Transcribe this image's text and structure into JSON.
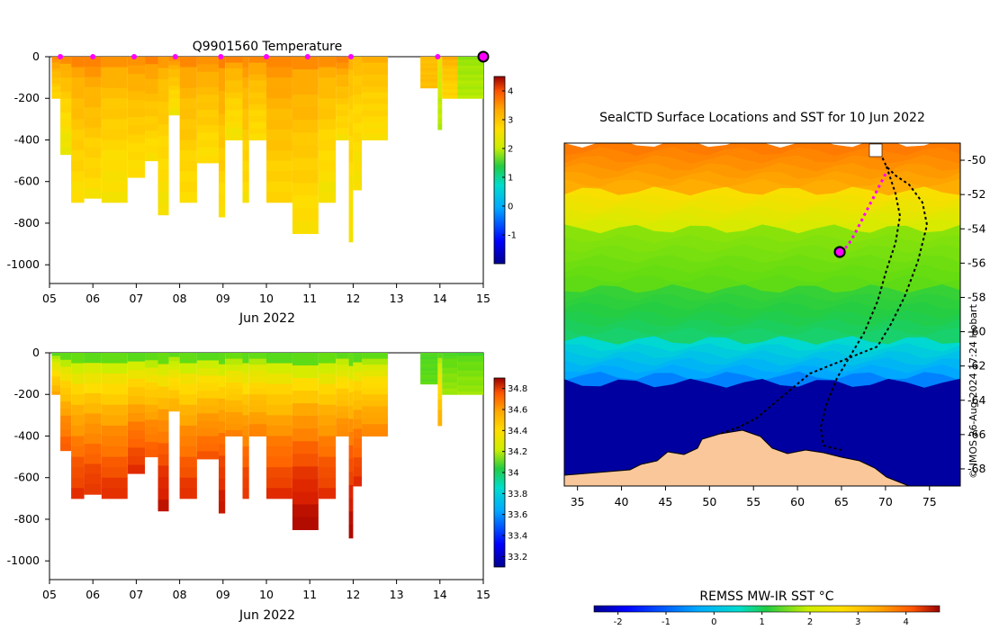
{
  "colors": {
    "jet": [
      "#00008f",
      "#0000ff",
      "#00aaff",
      "#00ddcc",
      "#22cc44",
      "#66dd11",
      "#ccee00",
      "#ffdd00",
      "#ffaa00",
      "#ff6600",
      "#dd2200",
      "#9a0000"
    ],
    "land": "#fac79a",
    "float_track": "#ff00ff"
  },
  "chart_data": [
    {
      "type": "heatmap",
      "title": "Q9901560  Temperature",
      "xlabel": "Jun 2022",
      "x_ticks": [
        "05",
        "06",
        "07",
        "08",
        "09",
        "10",
        "11",
        "12",
        "13",
        "14",
        "15"
      ],
      "y_ticks": [
        "0",
        "-200",
        "-400",
        "-600",
        "-800",
        "-1000"
      ],
      "xlim": [
        5,
        15
      ],
      "ylim": [
        -1090,
        0
      ],
      "colorbar_ticks": [
        "4",
        "3",
        "2",
        "1",
        "0",
        "-1"
      ],
      "colorbar_range": [
        -2,
        4.5
      ],
      "profile_times": [
        5.25,
        6.0,
        6.95,
        7.9,
        8.95,
        10.0,
        10.95,
        11.95,
        13.95,
        15.0
      ],
      "profiles": [
        {
          "x0": 5.05,
          "x1": 5.25,
          "bottom": -200,
          "surface": 3.1,
          "deep": 2.2
        },
        {
          "x0": 5.25,
          "x1": 5.5,
          "bottom": -470,
          "surface": 3.0,
          "deep": 1.9
        },
        {
          "x0": 5.5,
          "x1": 5.8,
          "bottom": -700,
          "surface": 3.0,
          "deep": 2.1
        },
        {
          "x0": 5.8,
          "x1": 6.2,
          "bottom": -680,
          "surface": 3.1,
          "deep": 2.1
        },
        {
          "x0": 6.2,
          "x1": 6.8,
          "bottom": -700,
          "surface": 2.9,
          "deep": 2.0
        },
        {
          "x0": 6.8,
          "x1": 7.2,
          "bottom": -580,
          "surface": 3.0,
          "deep": 2.1
        },
        {
          "x0": 7.2,
          "x1": 7.5,
          "bottom": -500,
          "surface": 3.1,
          "deep": 2.1
        },
        {
          "x0": 7.5,
          "x1": 7.75,
          "bottom": -760,
          "surface": 2.8,
          "deep": 2.0
        },
        {
          "x0": 7.75,
          "x1": 8.0,
          "bottom": -280,
          "surface": 3.0,
          "deep": 2.0
        },
        {
          "x0": 8.0,
          "x1": 8.4,
          "bottom": -700,
          "surface": 3.0,
          "deep": 2.1
        },
        {
          "x0": 8.4,
          "x1": 8.9,
          "bottom": -510,
          "surface": 3.0,
          "deep": 2.1
        },
        {
          "x0": 8.9,
          "x1": 9.05,
          "bottom": -770,
          "surface": 3.1,
          "deep": 2.1
        },
        {
          "x0": 9.05,
          "x1": 9.45,
          "bottom": -400,
          "surface": 3.0,
          "deep": 2.0
        },
        {
          "x0": 9.45,
          "x1": 9.6,
          "bottom": -700,
          "surface": 3.0,
          "deep": 2.1
        },
        {
          "x0": 9.6,
          "x1": 10.0,
          "bottom": -400,
          "surface": 3.0,
          "deep": 2.1
        },
        {
          "x0": 10.0,
          "x1": 10.6,
          "bottom": -700,
          "surface": 3.1,
          "deep": 2.2
        },
        {
          "x0": 10.6,
          "x1": 11.2,
          "bottom": -850,
          "surface": 3.0,
          "deep": 2.1
        },
        {
          "x0": 11.2,
          "x1": 11.6,
          "bottom": -700,
          "surface": 2.9,
          "deep": 2.0
        },
        {
          "x0": 11.6,
          "x1": 11.9,
          "bottom": -400,
          "surface": 3.1,
          "deep": 2.1
        },
        {
          "x0": 11.9,
          "x1": 12.0,
          "bottom": -890,
          "surface": 2.6,
          "deep": 2.0
        },
        {
          "x0": 12.0,
          "x1": 12.2,
          "bottom": -640,
          "surface": 2.6,
          "deep": 2.0
        },
        {
          "x0": 12.2,
          "x1": 12.8,
          "bottom": -400,
          "surface": 2.7,
          "deep": 2.1
        },
        {
          "x0": 13.55,
          "x1": 13.95,
          "bottom": -150,
          "surface": 2.5,
          "deep": 2.5
        },
        {
          "x0": 13.95,
          "x1": 14.05,
          "bottom": -350,
          "surface": 1.9,
          "deep": 1.4
        },
        {
          "x0": 14.05,
          "x1": 14.4,
          "bottom": -200,
          "surface": 2.7,
          "deep": 2.2
        },
        {
          "x0": 14.4,
          "x1": 15.0,
          "bottom": -200,
          "surface": 1.2,
          "deep": 1.4
        }
      ]
    },
    {
      "type": "heatmap",
      "title": "",
      "xlabel": "Jun 2022",
      "x_ticks": [
        "05",
        "06",
        "07",
        "08",
        "09",
        "10",
        "11",
        "12",
        "13",
        "14",
        "15"
      ],
      "y_ticks": [
        "0",
        "-200",
        "-400",
        "-600",
        "-800",
        "-1000"
      ],
      "xlim": [
        5,
        15
      ],
      "ylim": [
        -1090,
        0
      ],
      "colorbar_ticks": [
        "34.8",
        "34.6",
        "34.4",
        "34.2",
        "34",
        "33.8",
        "33.6",
        "33.4",
        "33.2"
      ],
      "colorbar_range": [
        33.1,
        34.9
      ],
      "profiles": [
        {
          "x0": 5.05,
          "x1": 5.25,
          "bottom": -200,
          "surface": 33.9,
          "deep": 34.4
        },
        {
          "x0": 5.25,
          "x1": 5.5,
          "bottom": -470,
          "surface": 33.9,
          "deep": 34.6
        },
        {
          "x0": 5.5,
          "x1": 5.8,
          "bottom": -700,
          "surface": 33.9,
          "deep": 34.7
        },
        {
          "x0": 5.8,
          "x1": 6.2,
          "bottom": -680,
          "surface": 33.9,
          "deep": 34.7
        },
        {
          "x0": 6.2,
          "x1": 6.8,
          "bottom": -700,
          "surface": 33.9,
          "deep": 34.7
        },
        {
          "x0": 6.8,
          "x1": 7.2,
          "bottom": -580,
          "surface": 33.9,
          "deep": 34.7
        },
        {
          "x0": 7.2,
          "x1": 7.5,
          "bottom": -500,
          "surface": 33.9,
          "deep": 34.6
        },
        {
          "x0": 7.5,
          "x1": 7.75,
          "bottom": -760,
          "surface": 33.9,
          "deep": 34.8
        },
        {
          "x0": 7.75,
          "x1": 8.0,
          "bottom": -280,
          "surface": 33.9,
          "deep": 34.4
        },
        {
          "x0": 8.0,
          "x1": 8.4,
          "bottom": -700,
          "surface": 33.9,
          "deep": 34.7
        },
        {
          "x0": 8.4,
          "x1": 8.9,
          "bottom": -510,
          "surface": 33.9,
          "deep": 34.6
        },
        {
          "x0": 8.9,
          "x1": 9.05,
          "bottom": -770,
          "surface": 33.9,
          "deep": 34.8
        },
        {
          "x0": 9.05,
          "x1": 9.45,
          "bottom": -400,
          "surface": 33.9,
          "deep": 34.5
        },
        {
          "x0": 9.45,
          "x1": 9.6,
          "bottom": -700,
          "surface": 33.9,
          "deep": 34.7
        },
        {
          "x0": 9.6,
          "x1": 10.0,
          "bottom": -400,
          "surface": 33.9,
          "deep": 34.5
        },
        {
          "x0": 10.0,
          "x1": 10.6,
          "bottom": -700,
          "surface": 33.9,
          "deep": 34.7
        },
        {
          "x0": 10.6,
          "x1": 11.2,
          "bottom": -850,
          "surface": 33.9,
          "deep": 34.85
        },
        {
          "x0": 11.2,
          "x1": 11.6,
          "bottom": -700,
          "surface": 33.9,
          "deep": 34.7
        },
        {
          "x0": 11.6,
          "x1": 11.9,
          "bottom": -400,
          "surface": 33.9,
          "deep": 34.5
        },
        {
          "x0": 11.9,
          "x1": 12.0,
          "bottom": -890,
          "surface": 33.9,
          "deep": 34.85
        },
        {
          "x0": 12.0,
          "x1": 12.2,
          "bottom": -640,
          "surface": 33.9,
          "deep": 34.7
        },
        {
          "x0": 12.2,
          "x1": 12.8,
          "bottom": -400,
          "surface": 33.9,
          "deep": 34.5
        },
        {
          "x0": 13.55,
          "x1": 13.95,
          "bottom": -150,
          "surface": 33.85,
          "deep": 33.9
        },
        {
          "x0": 13.95,
          "x1": 14.05,
          "bottom": -350,
          "surface": 33.9,
          "deep": 34.4
        },
        {
          "x0": 14.05,
          "x1": 14.4,
          "bottom": -200,
          "surface": 33.85,
          "deep": 34.0
        },
        {
          "x0": 14.4,
          "x1": 15.0,
          "bottom": -200,
          "surface": 33.85,
          "deep": 34.0
        }
      ]
    },
    {
      "type": "heatmap",
      "title": "SealCTD Surface Locations and SST for 10 Jun 2022",
      "x_ticks": [
        "35",
        "40",
        "45",
        "50",
        "55",
        "60",
        "65",
        "70",
        "75"
      ],
      "y_ticks": [
        "-50",
        "-52",
        "-54",
        "-56",
        "-58",
        "-60",
        "-62",
        "-64",
        "-66",
        "-68"
      ],
      "xlim": [
        33.5,
        78.5
      ],
      "ylim": [
        -69,
        -49
      ],
      "colorbar_label": "REMSS MW-IR SST °C",
      "colorbar_ticks": [
        "-2",
        "-1",
        "0",
        "1",
        "2",
        "3",
        "4"
      ],
      "colorbar_range": [
        -2.5,
        4.7
      ],
      "sst_bands": [
        {
          "lat_top": -49,
          "lat_bottom": -51.8,
          "temp": 3.2
        },
        {
          "lat_top": -51.8,
          "lat_bottom": -54,
          "temp": 2.0
        },
        {
          "lat_top": -54,
          "lat_bottom": -57.5,
          "temp": 1.0
        },
        {
          "lat_top": -57.5,
          "lat_bottom": -60.5,
          "temp": 0.3
        },
        {
          "lat_top": -60.5,
          "lat_bottom": -63,
          "temp": -0.6
        },
        {
          "lat_top": -63,
          "lat_bottom": -69,
          "temp": -2.4
        }
      ],
      "float_track": {
        "lon": [
          70,
          69.4,
          68.7,
          68.0,
          67.3,
          66.5,
          65.7,
          64.8
        ],
        "lat": [
          -50.8,
          -51.4,
          -52.1,
          -52.8,
          -53.5,
          -54.3,
          -55.0,
          -55.4
        ]
      },
      "float_position": {
        "lon": 64.8,
        "lat": -55.35
      },
      "side_text": "© IMOS 26-Aug-2024 17:24 Hobart"
    }
  ]
}
